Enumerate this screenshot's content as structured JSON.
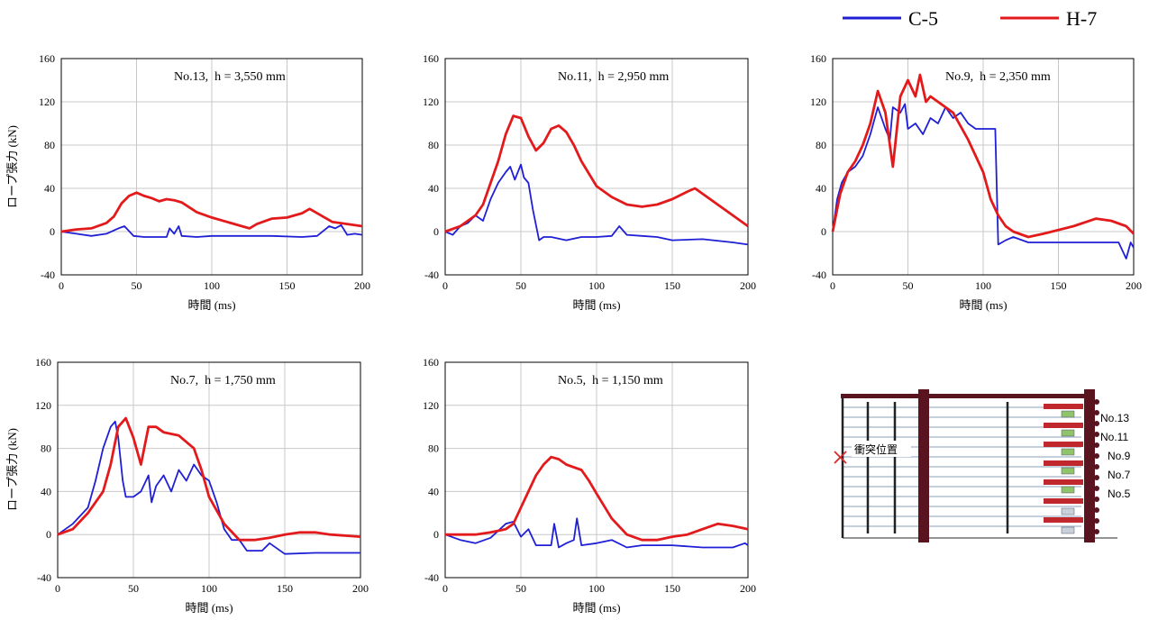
{
  "legend": [
    {
      "name": "C-5",
      "color": "#1f1fd6"
    },
    {
      "name": "H-7",
      "color": "#e31a1c"
    }
  ],
  "chart_data": [
    {
      "type": "line",
      "annotation": "No.13,  h = 3,550 mm",
      "xlabel": "時間 (ms)",
      "ylabel": "ロープ張力 (kN)",
      "xlim": [
        0,
        200
      ],
      "ylim": [
        -40,
        160
      ],
      "xticks": [
        0,
        50,
        100,
        150,
        200
      ],
      "yticks": [
        -40,
        0,
        40,
        80,
        120,
        160
      ],
      "grid": true,
      "series": [
        {
          "name": "C-5",
          "color": "#1f1fd6",
          "x": [
            0,
            10,
            20,
            30,
            38,
            42,
            48,
            55,
            70,
            72,
            75,
            78,
            80,
            90,
            100,
            120,
            140,
            160,
            170,
            178,
            182,
            186,
            190,
            195,
            200
          ],
          "y": [
            0,
            -2,
            -4,
            -2,
            3,
            5,
            -4,
            -5,
            -5,
            3,
            -2,
            5,
            -4,
            -5,
            -4,
            -4,
            -4,
            -5,
            -4,
            5,
            3,
            6,
            -3,
            -2,
            -3
          ]
        },
        {
          "name": "H-7",
          "color": "#e31a1c",
          "x": [
            0,
            10,
            20,
            30,
            35,
            40,
            45,
            50,
            55,
            60,
            65,
            70,
            75,
            80,
            90,
            100,
            110,
            120,
            125,
            130,
            140,
            150,
            160,
            165,
            170,
            180,
            190,
            200
          ],
          "y": [
            0,
            2,
            3,
            8,
            14,
            26,
            33,
            36,
            33,
            31,
            28,
            30,
            29,
            27,
            18,
            13,
            9,
            5,
            3,
            7,
            12,
            13,
            17,
            21,
            17,
            9,
            7,
            5
          ]
        }
      ]
    },
    {
      "type": "line",
      "annotation": "No.11,  h = 2,950 mm",
      "xlabel": "時間 (ms)",
      "ylabel": "",
      "xlim": [
        0,
        200
      ],
      "ylim": [
        -40,
        160
      ],
      "xticks": [
        0,
        50,
        100,
        150,
        200
      ],
      "yticks": [
        -40,
        0,
        40,
        80,
        120,
        160
      ],
      "grid": true,
      "series": [
        {
          "name": "C-5",
          "color": "#1f1fd6",
          "x": [
            0,
            5,
            10,
            15,
            20,
            25,
            30,
            35,
            40,
            43,
            46,
            50,
            52,
            55,
            58,
            62,
            65,
            70,
            80,
            90,
            100,
            110,
            115,
            120,
            130,
            140,
            150,
            170,
            190,
            200
          ],
          "y": [
            0,
            -3,
            5,
            8,
            15,
            10,
            30,
            45,
            55,
            60,
            48,
            62,
            50,
            45,
            20,
            -8,
            -5,
            -5,
            -8,
            -5,
            -5,
            -4,
            5,
            -3,
            -4,
            -5,
            -8,
            -7,
            -10,
            -12
          ]
        },
        {
          "name": "H-7",
          "color": "#e31a1c",
          "x": [
            0,
            10,
            20,
            25,
            30,
            35,
            40,
            45,
            50,
            55,
            60,
            65,
            70,
            75,
            80,
            85,
            90,
            100,
            110,
            120,
            130,
            140,
            150,
            160,
            165,
            170,
            180,
            190,
            200
          ],
          "y": [
            0,
            5,
            15,
            25,
            45,
            65,
            90,
            107,
            105,
            88,
            75,
            82,
            95,
            98,
            92,
            80,
            65,
            42,
            32,
            25,
            23,
            25,
            30,
            37,
            40,
            35,
            25,
            15,
            5
          ]
        }
      ]
    },
    {
      "type": "line",
      "annotation": "No.9,  h = 2,350 mm",
      "xlabel": "時間 (ms)",
      "ylabel": "",
      "xlim": [
        0,
        200
      ],
      "ylim": [
        -40,
        160
      ],
      "xticks": [
        0,
        50,
        100,
        150,
        200
      ],
      "yticks": [
        -40,
        0,
        40,
        80,
        120,
        160
      ],
      "grid": true,
      "series": [
        {
          "name": "C-5",
          "color": "#1f1fd6",
          "x": [
            0,
            3,
            6,
            10,
            15,
            20,
            25,
            30,
            35,
            38,
            40,
            45,
            48,
            50,
            55,
            60,
            65,
            70,
            75,
            80,
            85,
            90,
            95,
            100,
            105,
            108,
            110,
            115,
            120,
            130,
            150,
            170,
            190,
            195,
            198,
            200
          ],
          "y": [
            0,
            30,
            45,
            55,
            60,
            70,
            90,
            115,
            95,
            85,
            115,
            110,
            118,
            95,
            100,
            90,
            105,
            100,
            115,
            105,
            110,
            100,
            95,
            95,
            95,
            95,
            -12,
            -8,
            -5,
            -10,
            -10,
            -10,
            -10,
            -25,
            -10,
            -15
          ]
        },
        {
          "name": "H-7",
          "color": "#e31a1c",
          "x": [
            0,
            5,
            10,
            15,
            20,
            25,
            30,
            35,
            40,
            45,
            50,
            55,
            58,
            62,
            65,
            70,
            80,
            90,
            100,
            105,
            110,
            115,
            120,
            130,
            140,
            160,
            175,
            185,
            195,
            200
          ],
          "y": [
            0,
            35,
            55,
            65,
            80,
            100,
            130,
            110,
            60,
            125,
            140,
            125,
            145,
            120,
            125,
            120,
            110,
            85,
            55,
            30,
            15,
            5,
            0,
            -5,
            -2,
            5,
            12,
            10,
            5,
            -2
          ]
        }
      ]
    },
    {
      "type": "line",
      "annotation": "No.7,  h = 1,750 mm",
      "xlabel": "時間 (ms)",
      "ylabel": "ロープ張力 (kN)",
      "xlim": [
        0,
        200
      ],
      "ylim": [
        -40,
        160
      ],
      "xticks": [
        0,
        50,
        100,
        150,
        200
      ],
      "yticks": [
        -40,
        0,
        40,
        80,
        120,
        160
      ],
      "grid": true,
      "series": [
        {
          "name": "C-5",
          "color": "#1f1fd6",
          "x": [
            0,
            10,
            20,
            25,
            30,
            35,
            38,
            40,
            43,
            45,
            50,
            55,
            60,
            62,
            65,
            70,
            75,
            80,
            85,
            90,
            95,
            100,
            105,
            110,
            115,
            120,
            125,
            135,
            140,
            150,
            170,
            200
          ],
          "y": [
            0,
            10,
            25,
            50,
            80,
            100,
            105,
            90,
            50,
            35,
            35,
            40,
            55,
            30,
            45,
            55,
            40,
            60,
            50,
            65,
            55,
            50,
            30,
            5,
            -5,
            -5,
            -15,
            -15,
            -8,
            -18,
            -17,
            -17
          ]
        },
        {
          "name": "H-7",
          "color": "#e31a1c",
          "x": [
            0,
            10,
            20,
            30,
            35,
            40,
            45,
            50,
            55,
            60,
            65,
            70,
            80,
            90,
            95,
            100,
            110,
            120,
            130,
            140,
            150,
            160,
            170,
            180,
            200
          ],
          "y": [
            0,
            5,
            20,
            40,
            65,
            100,
            108,
            90,
            65,
            100,
            100,
            95,
            92,
            80,
            60,
            35,
            10,
            -5,
            -5,
            -3,
            0,
            2,
            2,
            0,
            -2
          ]
        }
      ]
    },
    {
      "type": "line",
      "annotation": "No.5,  h = 1,150 mm",
      "xlabel": "時間 (ms)",
      "ylabel": "",
      "xlim": [
        0,
        200
      ],
      "ylim": [
        -40,
        160
      ],
      "xticks": [
        0,
        50,
        100,
        150,
        200
      ],
      "yticks": [
        -40,
        0,
        40,
        80,
        120,
        160
      ],
      "grid": true,
      "series": [
        {
          "name": "C-5",
          "color": "#1f1fd6",
          "x": [
            0,
            10,
            20,
            30,
            40,
            45,
            50,
            55,
            60,
            70,
            72,
            75,
            80,
            85,
            87,
            90,
            100,
            110,
            120,
            130,
            150,
            170,
            190,
            198,
            200
          ],
          "y": [
            0,
            -5,
            -8,
            -3,
            10,
            12,
            -2,
            5,
            -10,
            -10,
            10,
            -12,
            -8,
            -5,
            15,
            -10,
            -8,
            -5,
            -12,
            -10,
            -10,
            -12,
            -12,
            -8,
            -10
          ]
        },
        {
          "name": "H-7",
          "color": "#e31a1c",
          "x": [
            0,
            20,
            30,
            40,
            45,
            50,
            55,
            60,
            65,
            70,
            75,
            80,
            90,
            95,
            100,
            110,
            120,
            130,
            140,
            150,
            160,
            170,
            180,
            190,
            200
          ],
          "y": [
            0,
            0,
            2,
            5,
            10,
            25,
            40,
            55,
            65,
            72,
            70,
            65,
            60,
            50,
            38,
            15,
            0,
            -5,
            -5,
            -2,
            0,
            5,
            10,
            8,
            5
          ]
        }
      ]
    }
  ],
  "diagram": {
    "impact_label": "衝突位置",
    "rope_labels": [
      "No.13",
      "No.11",
      "No.9",
      "No.7",
      "No.5"
    ]
  }
}
